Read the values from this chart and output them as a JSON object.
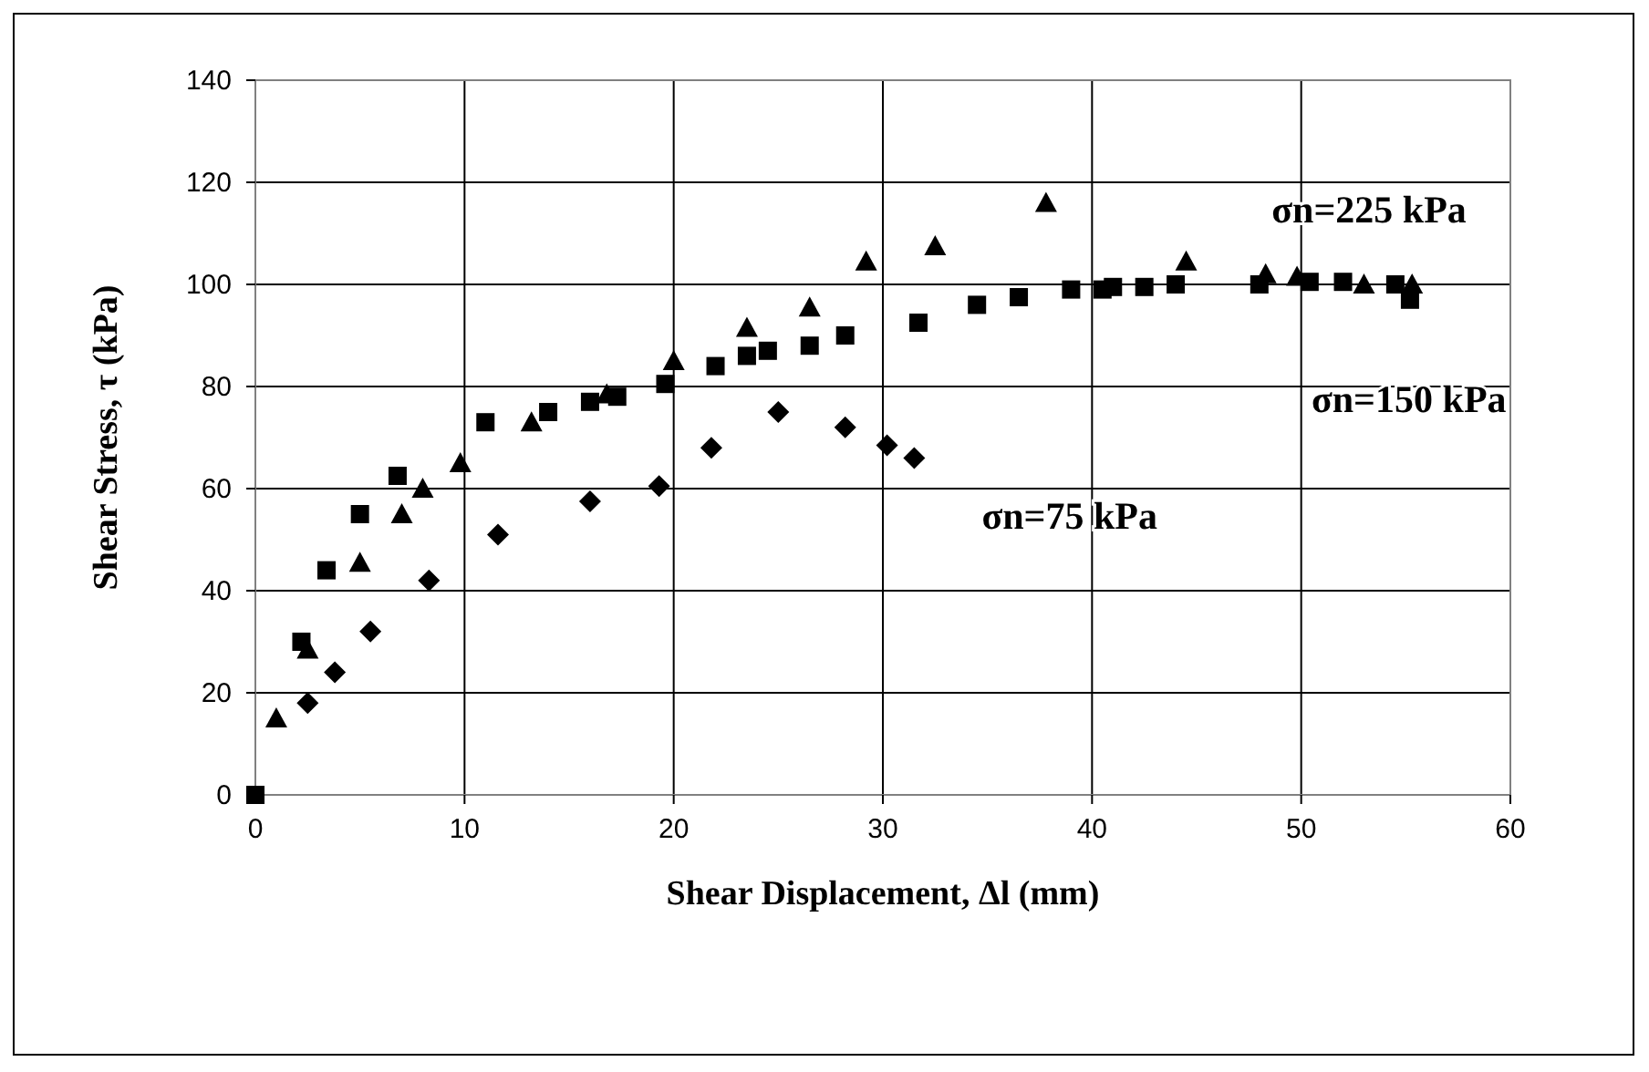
{
  "chart_data": {
    "type": "scatter",
    "xlabel": "Shear Displacement, Δl (mm)",
    "ylabel": "Shear Stress, τ (kPa)",
    "xlim": [
      0,
      60
    ],
    "xticks": [
      0,
      10,
      20,
      30,
      40,
      50,
      60
    ],
    "ylim": [
      0,
      140
    ],
    "yticks": [
      0,
      20,
      40,
      60,
      80,
      100,
      120,
      140
    ],
    "grid": true,
    "series": [
      {
        "name": "σn=150 kPa",
        "color": "#000000",
        "marker": "square",
        "x": [
          0,
          2.2,
          3.4,
          5,
          6.8,
          11,
          14,
          16,
          17.3,
          19.6,
          22,
          23.5,
          24.5,
          26.5,
          28.2,
          31.7,
          34.5,
          36.5,
          39,
          40.5,
          41,
          42.5,
          44,
          48,
          50.4,
          52,
          54.5,
          55.2
        ],
        "values": [
          0,
          30,
          44,
          55,
          62.5,
          73,
          75,
          77,
          78,
          80.5,
          84,
          86,
          87,
          88,
          90,
          92.5,
          96,
          97.5,
          99,
          99,
          99.5,
          99.5,
          100,
          100,
          100.5,
          100.5,
          100,
          97
        ]
      },
      {
        "name": "σn=225 kPa",
        "color": "#000000",
        "marker": "triangle",
        "x": [
          1,
          2.5,
          5,
          7,
          8,
          9.8,
          13.2,
          16.8,
          20,
          23.5,
          26.5,
          29.2,
          32.5,
          37.8,
          44.5,
          48.3,
          49.8,
          53,
          55.3
        ],
        "values": [
          15,
          28.5,
          45.5,
          55,
          60,
          65,
          73,
          78.5,
          85,
          91.5,
          95.5,
          104.5,
          107.5,
          116,
          104.5,
          102,
          101.5,
          100,
          100
        ]
      },
      {
        "name": "σn=75 kPa",
        "color": "#000000",
        "marker": "diamond",
        "x": [
          2.5,
          3.8,
          5.5,
          8.3,
          11.6,
          16,
          19.3,
          21.8,
          25,
          28.2,
          30.2,
          31.5
        ],
        "values": [
          18,
          24,
          32,
          42,
          51,
          57.5,
          60.5,
          68,
          75,
          72,
          68.5,
          66
        ]
      }
    ]
  }
}
